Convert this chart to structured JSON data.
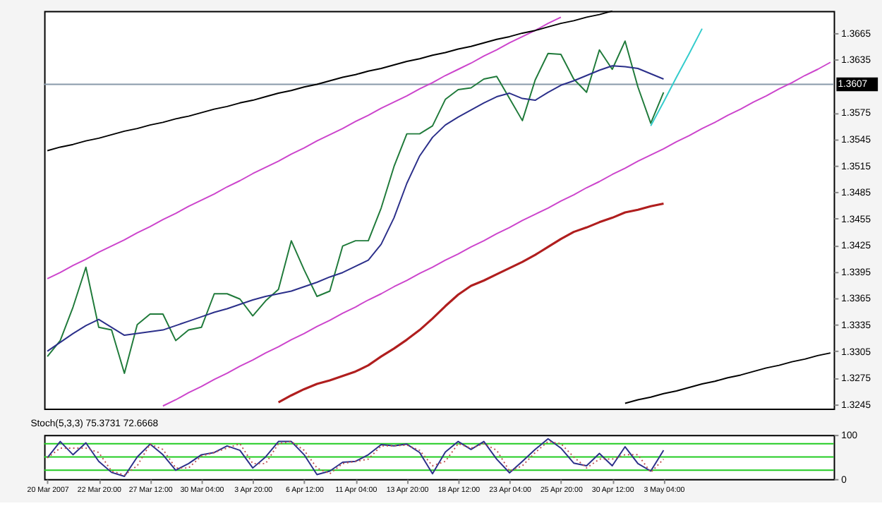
{
  "chart_data": [
    {
      "type": "line",
      "ylim": [
        1.324,
        1.369
      ],
      "yticks": [
        1.3245,
        1.3275,
        1.3305,
        1.3335,
        1.3365,
        1.3395,
        1.3425,
        1.3455,
        1.3485,
        1.3515,
        1.3545,
        1.3575,
        1.3635,
        1.3665
      ],
      "categories": [
        null,
        null,
        null,
        null,
        null,
        null,
        null,
        null,
        null,
        null,
        null,
        null,
        null,
        null,
        null,
        null,
        null,
        null,
        null,
        null,
        null,
        null,
        null,
        null,
        null,
        null,
        null,
        null,
        null,
        null,
        null,
        null,
        null,
        null,
        null,
        null,
        null,
        null,
        null,
        null,
        null,
        null,
        null,
        null,
        null,
        null,
        null,
        null,
        null,
        null,
        null,
        null,
        null,
        null,
        null,
        null,
        null,
        null,
        null,
        null,
        null,
        null
      ],
      "tick_labels": "y",
      "ref_lines": [
        {
          "axis": "y",
          "value": 1.3607,
          "label": "1.3607",
          "color": "#8899aa"
        }
      ],
      "series": [
        {
          "color": "#1f7a3a",
          "values": [
            1.3299,
            1.3317,
            1.3355,
            1.34,
            1.3332,
            1.3329,
            1.328,
            1.3335,
            1.3347,
            1.3347,
            1.3317,
            1.3329,
            1.3332,
            1.337,
            1.337,
            1.3364,
            1.3345,
            1.3362,
            1.3375,
            1.343,
            1.3397,
            1.3367,
            1.3373,
            1.3424,
            1.343,
            1.343,
            1.3467,
            1.3514,
            1.3551,
            1.3551,
            1.356,
            1.359,
            1.3601,
            1.3603,
            1.3613,
            1.3616,
            1.3591,
            1.3566,
            1.3612,
            1.3642,
            1.3641,
            1.3613,
            1.3598,
            1.3646,
            1.3624,
            1.3656,
            1.3604,
            1.3563,
            1.3598,
            null,
            null,
            null,
            null,
            null,
            null,
            null,
            null,
            null,
            null,
            null,
            null,
            null
          ]
        },
        {
          "color": "#2b2f8a",
          "values": [
            1.3305,
            1.3315,
            1.3325,
            1.3334,
            1.3341,
            1.3332,
            1.3323,
            1.3325,
            1.3327,
            1.3329,
            1.3334,
            1.3339,
            1.3344,
            1.3349,
            1.3353,
            1.3358,
            1.3363,
            1.3367,
            1.337,
            1.3373,
            1.3378,
            1.3383,
            1.3389,
            1.3394,
            1.3401,
            1.3408,
            1.3426,
            1.3456,
            1.3495,
            1.3526,
            1.3547,
            1.3561,
            1.357,
            1.3578,
            1.3586,
            1.3593,
            1.3597,
            1.3591,
            1.3589,
            1.3598,
            1.3606,
            1.3611,
            1.3617,
            1.3623,
            1.3628,
            1.3627,
            1.3625,
            1.3619,
            1.3613,
            null,
            null,
            null,
            null,
            null,
            null,
            null,
            null,
            null,
            null,
            null,
            null,
            null
          ]
        },
        {
          "color": "#b01e1e",
          "values": [
            null,
            null,
            null,
            null,
            null,
            null,
            null,
            null,
            null,
            null,
            null,
            null,
            null,
            null,
            null,
            null,
            null,
            null,
            1.3247,
            1.3255,
            1.3262,
            1.3268,
            1.3272,
            1.3277,
            1.3282,
            1.3289,
            1.3299,
            1.3308,
            1.3318,
            1.3329,
            1.3342,
            1.3356,
            1.3369,
            1.3379,
            1.3385,
            1.3392,
            1.3399,
            1.3406,
            1.3414,
            1.3423,
            1.3432,
            1.344,
            1.3445,
            1.3451,
            1.3456,
            1.3462,
            1.3465,
            1.3469,
            1.3472,
            null,
            null,
            null,
            null,
            null,
            null,
            null,
            null,
            null,
            null,
            null,
            null,
            null
          ]
        },
        {
          "color": "#cc44cc",
          "values": [
            1.3387,
            1.3394,
            1.3402,
            1.3409,
            1.3417,
            1.3424,
            1.3431,
            1.3439,
            1.3446,
            1.3454,
            1.3461,
            1.3469,
            1.3476,
            1.3483,
            1.3491,
            1.3498,
            1.3506,
            1.3513,
            1.352,
            1.3528,
            1.3535,
            1.3543,
            1.355,
            1.3557,
            1.3565,
            1.3572,
            1.358,
            1.3587,
            1.3594,
            1.3602,
            1.3609,
            1.3617,
            1.3624,
            1.3631,
            1.3639,
            1.3646,
            1.3654,
            1.3661,
            1.3668,
            1.3676,
            1.3683,
            null,
            null,
            null,
            null,
            null,
            null,
            null,
            null,
            null,
            null,
            null,
            null,
            null,
            null,
            null,
            null,
            null,
            null,
            null,
            null,
            null
          ]
        },
        {
          "color": "#cc44cc",
          "values": [
            null,
            null,
            null,
            null,
            null,
            null,
            null,
            null,
            null,
            1.3243,
            1.325,
            1.3258,
            1.3265,
            1.3273,
            1.328,
            1.3288,
            1.3295,
            1.3303,
            1.331,
            1.3318,
            1.3325,
            1.3333,
            1.334,
            1.3348,
            1.3355,
            1.3363,
            1.337,
            1.3378,
            1.3385,
            1.3393,
            1.34,
            1.3408,
            1.3415,
            1.3423,
            1.343,
            1.3438,
            1.3445,
            1.3453,
            1.346,
            1.3467,
            1.3475,
            1.3482,
            1.349,
            1.3497,
            1.3505,
            1.3512,
            1.352,
            1.3527,
            1.3534,
            1.3542,
            1.3549,
            1.3557,
            1.3564,
            1.3572,
            1.3579,
            1.3587,
            1.3594,
            1.3602,
            1.3609,
            1.3617,
            1.3624,
            1.3632
          ]
        },
        {
          "color": "#000000",
          "values": [
            1.3532,
            1.3536,
            1.3539,
            1.3543,
            1.3546,
            1.355,
            1.3554,
            1.3557,
            1.3561,
            1.3564,
            1.3568,
            1.3571,
            1.3575,
            1.3579,
            1.3582,
            1.3586,
            1.3589,
            1.3593,
            1.3597,
            1.36,
            1.3604,
            1.3607,
            1.3611,
            1.3615,
            1.3618,
            1.3622,
            1.3625,
            1.3629,
            1.3633,
            1.3636,
            1.364,
            1.3643,
            1.3647,
            1.365,
            1.3654,
            1.3658,
            1.3661,
            1.3665,
            1.3668,
            1.3672,
            1.3676,
            1.3679,
            1.3683,
            1.3686,
            1.369,
            null,
            null,
            null,
            null,
            null,
            null,
            null,
            null,
            null,
            null,
            null,
            null,
            null,
            null,
            null,
            null,
            null
          ]
        },
        {
          "color": "#000000",
          "values": [
            null,
            null,
            null,
            null,
            null,
            null,
            null,
            null,
            null,
            null,
            null,
            null,
            null,
            null,
            null,
            null,
            null,
            null,
            null,
            null,
            null,
            null,
            null,
            null,
            null,
            null,
            null,
            null,
            null,
            null,
            null,
            null,
            null,
            null,
            null,
            null,
            null,
            null,
            null,
            null,
            null,
            null,
            null,
            null,
            null,
            1.3246,
            1.325,
            1.3253,
            1.3257,
            1.326,
            1.3264,
            1.3268,
            1.3271,
            1.3275,
            1.3278,
            1.3282,
            1.3286,
            1.3289,
            1.3293,
            1.3296,
            1.33,
            1.3303
          ]
        },
        {
          "color": "#33cccc",
          "values": [
            null,
            null,
            null,
            null,
            null,
            null,
            null,
            null,
            null,
            null,
            null,
            null,
            null,
            null,
            null,
            null,
            null,
            null,
            null,
            null,
            null,
            null,
            null,
            null,
            null,
            null,
            null,
            null,
            null,
            null,
            null,
            null,
            null,
            null,
            null,
            null,
            null,
            null,
            null,
            null,
            null,
            null,
            null,
            null,
            null,
            null,
            null,
            1.356,
            1.3587,
            1.3615,
            1.3642,
            1.367,
            null,
            null,
            null,
            null,
            null,
            null,
            null,
            null,
            null,
            null
          ]
        }
      ]
    },
    {
      "type": "line",
      "title": "Stoch(5,3,3) 75.3731 72.6668",
      "ylim": [
        0,
        100
      ],
      "yticks": [
        0,
        100
      ],
      "categories": [
        "20 Mar 2007",
        null,
        null,
        null,
        "22 Mar 20:00",
        null,
        null,
        null,
        "27 Mar 12:00",
        null,
        null,
        null,
        "30 Mar 04:00",
        null,
        null,
        null,
        "3 Apr 20:00",
        null,
        null,
        null,
        "6 Apr 12:00",
        null,
        null,
        null,
        "11 Apr 04:00",
        null,
        null,
        null,
        "13 Apr 20:00",
        null,
        null,
        null,
        "18 Apr 12:00",
        null,
        null,
        null,
        "23 Apr 04:00",
        null,
        null,
        null,
        "25 Apr 20:00",
        null,
        null,
        null,
        "30 Apr 12:00",
        null,
        null,
        null,
        "3 May 04:00",
        null,
        null,
        null,
        null,
        null,
        null,
        null,
        null,
        null,
        null,
        null,
        null,
        null
      ],
      "ref_lines": [
        {
          "axis": "y",
          "value": 80,
          "color": "#22cc22"
        },
        {
          "axis": "y",
          "value": 50,
          "color": "#22cc22"
        },
        {
          "axis": "y",
          "value": 20,
          "color": "#22cc22"
        }
      ],
      "series": [
        {
          "color": "#2b2f8a",
          "values": [
            48,
            85,
            55,
            82,
            40,
            15,
            6,
            50,
            79,
            55,
            20,
            35,
            55,
            60,
            75,
            65,
            25,
            50,
            85,
            85,
            55,
            10,
            18,
            38,
            40,
            55,
            78,
            75,
            79,
            60,
            12,
            61,
            85,
            67,
            85,
            45,
            14,
            40,
            67,
            91,
            70,
            36,
            30,
            58,
            30,
            73,
            35,
            18,
            65,
            null,
            null,
            null,
            null,
            null,
            null,
            null,
            null,
            null,
            null,
            null,
            null,
            null
          ]
        },
        {
          "color": "#c05050",
          "line_style": "dotted",
          "values": [
            48,
            70,
            70,
            70,
            60,
            18,
            9,
            30,
            79,
            67,
            25,
            25,
            52,
            60,
            70,
            80,
            35,
            35,
            80,
            85,
            65,
            25,
            12,
            35,
            40,
            45,
            75,
            75,
            77,
            65,
            30,
            40,
            80,
            70,
            80,
            65,
            18,
            30,
            60,
            85,
            80,
            50,
            25,
            45,
            45,
            55,
            55,
            15,
            45,
            null,
            null,
            null,
            null,
            null,
            null,
            null,
            null,
            null,
            null,
            null,
            null,
            null
          ]
        }
      ]
    }
  ]
}
